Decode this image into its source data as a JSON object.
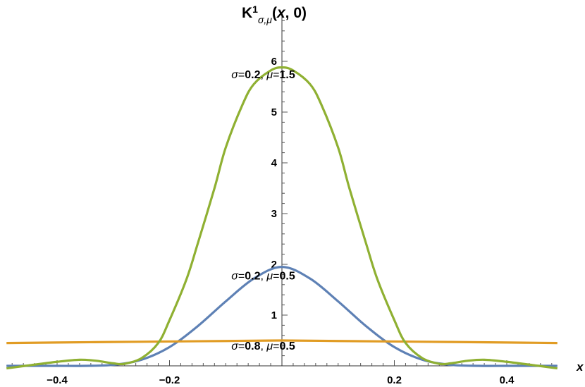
{
  "chart_data": {
    "type": "line",
    "title": "",
    "xlabel": "x",
    "ylabel": "K1σ,μ(x, 0)",
    "ylabel_parts": {
      "base": "K",
      "sup": "1",
      "sub": "σ,μ",
      "args": "(",
      "arg_x": "x",
      "arg_rest": ", 0)"
    },
    "xlim": [
      -0.49,
      0.49
    ],
    "ylim": [
      -0.05,
      6.95
    ],
    "x_ticks": [
      -0.4,
      -0.2,
      0.2,
      0.4
    ],
    "x_tick_labels": [
      "−0.4",
      "−0.2",
      "0.2",
      "0.4"
    ],
    "y_ticks": [
      1,
      2,
      3,
      4,
      5,
      6
    ],
    "y_tick_labels": [
      "1",
      "2",
      "3",
      "4",
      "5",
      "6"
    ],
    "grid": false,
    "series": [
      {
        "label_sigma": "0.2",
        "label_mu": "0.5",
        "color": "#5E81B5",
        "x": [
          -0.49,
          -0.45,
          -0.4,
          -0.35,
          -0.3,
          -0.25,
          -0.2,
          -0.15,
          -0.1,
          -0.05,
          0.0,
          0.05,
          0.1,
          0.15,
          0.2,
          0.25,
          0.3,
          0.35,
          0.4,
          0.45,
          0.49
        ],
        "y": [
          0.0,
          0.0,
          0.0,
          0.0,
          0.02,
          0.12,
          0.37,
          0.78,
          1.27,
          1.72,
          1.95,
          1.72,
          1.27,
          0.78,
          0.37,
          0.12,
          0.02,
          0.0,
          0.0,
          0.0,
          0.0
        ]
      },
      {
        "label_sigma": "0.8",
        "label_mu": "0.5",
        "color": "#E19C24",
        "x": [
          -0.49,
          -0.4,
          -0.3,
          -0.2,
          -0.1,
          0.0,
          0.1,
          0.2,
          0.3,
          0.4,
          0.49
        ],
        "y": [
          0.45,
          0.46,
          0.47,
          0.48,
          0.49,
          0.5,
          0.49,
          0.48,
          0.47,
          0.46,
          0.45
        ]
      },
      {
        "label_sigma": "0.2",
        "label_mu": "1.5",
        "color": "#8FB032",
        "x": [
          -0.49,
          -0.45,
          -0.4,
          -0.36,
          -0.33,
          -0.3,
          -0.28,
          -0.25,
          -0.22,
          -0.2,
          -0.17,
          -0.15,
          -0.12,
          -0.1,
          -0.07,
          -0.05,
          -0.02,
          0.0,
          0.02,
          0.05,
          0.07,
          0.1,
          0.12,
          0.15,
          0.17,
          0.2,
          0.22,
          0.25,
          0.28,
          0.3,
          0.33,
          0.36,
          0.4,
          0.45,
          0.49
        ],
        "y": [
          -0.05,
          0.01,
          0.08,
          0.12,
          0.1,
          0.05,
          0.04,
          0.15,
          0.45,
          0.9,
          1.7,
          2.4,
          3.5,
          4.3,
          5.15,
          5.55,
          5.82,
          5.88,
          5.82,
          5.55,
          5.15,
          4.3,
          3.5,
          2.4,
          1.7,
          0.9,
          0.45,
          0.15,
          0.04,
          0.05,
          0.1,
          0.12,
          0.08,
          0.01,
          -0.05
        ]
      }
    ],
    "annotations": [
      {
        "sigma": "0.2",
        "mu": "1.5",
        "x": -0.09,
        "y": 5.67
      },
      {
        "sigma": "0.2",
        "mu": "0.5",
        "x": -0.09,
        "y": 1.7
      },
      {
        "sigma": "0.8",
        "mu": "0.5",
        "x": -0.09,
        "y": 0.32
      }
    ],
    "annotation_text": {
      "sigma_sym": "σ",
      "mu_sym": "μ",
      "eq": "=",
      "sep": ", "
    }
  }
}
